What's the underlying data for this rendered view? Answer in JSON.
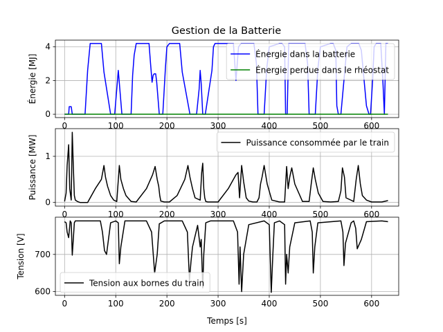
{
  "title": "Gestion de la Batterie",
  "chart_data": [
    {
      "type": "line",
      "title": "Gestion de la Batterie",
      "xlabel": "",
      "ylabel": "Énergie [MJ]",
      "xlim": [
        -18,
        653
      ],
      "ylim": [
        -0.2,
        4.4
      ],
      "xticks": [
        0,
        100,
        200,
        300,
        400,
        500,
        600
      ],
      "yticks": [
        0,
        2,
        4
      ],
      "grid": true,
      "legend": "top-right",
      "series": [
        {
          "name": "Énergie dans la batterie",
          "color": "#0000ff",
          "x": [
            0,
            8,
            9,
            13,
            15,
            40,
            45,
            50,
            72,
            77,
            90,
            95,
            98,
            102,
            105,
            108,
            112,
            130,
            133,
            136,
            140,
            145,
            165,
            168,
            171,
            173,
            175,
            178,
            180,
            185,
            192,
            197,
            200,
            205,
            225,
            230,
            245,
            250,
            253,
            258,
            263,
            265,
            267,
            270,
            275,
            288,
            291,
            294,
            300,
            325,
            330,
            335,
            340,
            345,
            350,
            355,
            370,
            375,
            378,
            390,
            395,
            400,
            420,
            425,
            430,
            432,
            435,
            438,
            441,
            444,
            450,
            465,
            470,
            475,
            478,
            490,
            495,
            500,
            520,
            525,
            530,
            532,
            535,
            540,
            548,
            552,
            560,
            570,
            575,
            580,
            590,
            595,
            598,
            602,
            605,
            609,
            615,
            618,
            622,
            625,
            628,
            632
          ],
          "y": [
            0,
            0,
            0.45,
            0.45,
            0,
            0,
            2.6,
            4.2,
            4.2,
            2.5,
            0,
            0,
            0,
            1.5,
            2.6,
            1.5,
            0,
            0,
            2.3,
            3.5,
            4.2,
            4.2,
            4.2,
            3.0,
            1.9,
            2.3,
            2.4,
            2.4,
            1.9,
            0,
            0,
            2.7,
            4.0,
            4.2,
            4.2,
            2.5,
            0,
            0,
            0,
            0,
            1.5,
            2.6,
            1.8,
            0,
            0,
            2.6,
            4.0,
            4.2,
            4.2,
            4.2,
            4.2,
            2.0,
            4.0,
            4.2,
            4.2,
            4.2,
            4.2,
            3.0,
            0,
            0,
            2.7,
            4.0,
            4.2,
            4.2,
            4.0,
            0,
            0,
            4.2,
            4.2,
            4.2,
            4.2,
            4.2,
            4.2,
            3.0,
            0,
            0,
            2.7,
            4.0,
            4.2,
            4.2,
            3.8,
            0.5,
            0,
            0,
            2.7,
            4.0,
            4.2,
            4.2,
            4.2,
            3.8,
            0.5,
            0,
            0,
            2.0,
            4.0,
            4.2,
            4.2,
            4.2,
            2.0,
            0,
            4.2,
            4.2
          ]
        },
        {
          "name": "Énergie perdue dans le rhéostat",
          "color": "#008000",
          "x": [
            0,
            632
          ],
          "y": [
            0,
            0
          ]
        }
      ]
    },
    {
      "type": "line",
      "title": "",
      "xlabel": "",
      "ylabel": "Puissance [MW]",
      "xlim": [
        -18,
        653
      ],
      "ylim": [
        -0.08,
        1.6
      ],
      "xticks": [
        0,
        100,
        200,
        300,
        400,
        500,
        600
      ],
      "yticks": [
        0,
        1
      ],
      "grid": true,
      "legend": "top-right",
      "series": [
        {
          "name": "Puissance consommée par le train",
          "color": "#000000",
          "x": [
            0,
            3,
            5,
            8,
            10,
            13,
            15,
            17,
            19,
            21,
            25,
            30,
            38,
            45,
            60,
            72,
            77,
            80,
            84,
            90,
            96,
            102,
            107,
            110,
            115,
            120,
            130,
            140,
            160,
            172,
            177,
            181,
            184,
            186,
            188,
            195,
            205,
            220,
            235,
            241,
            245,
            250,
            255,
            265,
            268,
            270,
            272,
            274,
            276,
            280,
            290,
            300,
            320,
            335,
            339,
            342,
            346,
            350,
            355,
            360,
            368,
            376,
            380,
            383,
            386,
            390,
            396,
            405,
            420,
            430,
            434,
            437,
            440,
            444,
            450,
            465,
            478,
            482,
            486,
            490,
            496,
            505,
            520,
            535,
            540,
            543,
            547,
            550,
            565,
            570,
            574,
            578,
            582,
            590,
            600,
            620,
            632
          ],
          "y": [
            0.02,
            0.2,
            0.8,
            1.25,
            0.3,
            0.05,
            1.52,
            0.8,
            0.15,
            0.05,
            0.02,
            0.0,
            0.0,
            0.0,
            0.3,
            0.5,
            0.8,
            0.55,
            0.35,
            0.15,
            0.05,
            0.02,
            0.8,
            0.5,
            0.3,
            0.15,
            0.02,
            0.01,
            0.3,
            0.6,
            0.78,
            0.5,
            0.35,
            0.15,
            0.03,
            0.01,
            0.01,
            0.15,
            0.5,
            0.8,
            0.55,
            0.3,
            0.1,
            0.05,
            0.65,
            0.85,
            0.3,
            0.1,
            0.02,
            0.01,
            0.01,
            0.01,
            0.3,
            0.6,
            0.65,
            0.1,
            0.8,
            0.45,
            0.1,
            0.03,
            0.01,
            0.01,
            0.1,
            0.4,
            0.55,
            0.8,
            0.4,
            0.05,
            0.01,
            0.01,
            0.78,
            0.3,
            0.55,
            0.75,
            0.4,
            0.02,
            0.02,
            0.4,
            0.75,
            0.5,
            0.2,
            0.02,
            0.01,
            0.02,
            0.25,
            0.75,
            0.55,
            0.1,
            0.02,
            0.5,
            0.8,
            0.4,
            0.15,
            0.05,
            0.01,
            0.01,
            0.04
          ]
        }
      ]
    },
    {
      "type": "line",
      "title": "",
      "xlabel": "Temps [s]",
      "ylabel": "Tension [V]",
      "xlim": [
        -18,
        653
      ],
      "ylim": [
        590,
        800
      ],
      "xticks": [
        0,
        100,
        200,
        300,
        400,
        500,
        600
      ],
      "yticks": [
        600,
        700
      ],
      "grid": true,
      "legend": "bottom-left",
      "series": [
        {
          "name": "Tension aux bornes du train",
          "color": "#000000",
          "x": [
            0,
            3,
            5,
            8,
            11,
            13,
            15,
            17,
            19,
            21,
            30,
            70,
            74,
            78,
            82,
            90,
            100,
            105,
            107,
            110,
            118,
            125,
            160,
            170,
            176,
            181,
            185,
            195,
            230,
            240,
            244,
            247,
            250,
            260,
            265,
            267,
            270,
            272,
            276,
            285,
            330,
            338,
            341,
            343,
            346,
            350,
            360,
            390,
            400,
            404,
            407,
            410,
            420,
            430,
            432,
            434,
            437,
            440,
            450,
            480,
            484,
            486,
            489,
            495,
            540,
            544,
            546,
            549,
            560,
            565,
            569,
            572,
            580,
            590,
            620,
            632
          ],
          "y": [
            788,
            785,
            760,
            745,
            790,
            785,
            698,
            740,
            785,
            790,
            790,
            790,
            760,
            710,
            700,
            785,
            790,
            785,
            675,
            720,
            790,
            790,
            790,
            760,
            650,
            700,
            782,
            790,
            790,
            760,
            630,
            680,
            720,
            778,
            720,
            740,
            610,
            700,
            785,
            790,
            790,
            760,
            620,
            720,
            600,
            700,
            780,
            790,
            780,
            598,
            700,
            785,
            790,
            780,
            620,
            700,
            650,
            720,
            785,
            790,
            760,
            650,
            720,
            785,
            790,
            760,
            670,
            730,
            785,
            790,
            770,
            715,
            740,
            788,
            790,
            788
          ]
        }
      ]
    }
  ]
}
